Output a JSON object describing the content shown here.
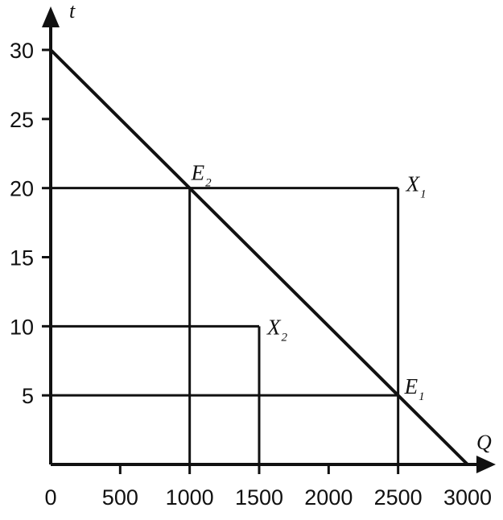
{
  "chart_data": {
    "type": "line",
    "xlabel": "Q",
    "ylabel": "t",
    "xlim": [
      0,
      3000
    ],
    "ylim": [
      0,
      30
    ],
    "x_ticks": [
      "0",
      "500",
      "1000",
      "1500",
      "2000",
      "2500",
      "3000"
    ],
    "y_ticks": [
      "5",
      "10",
      "15",
      "20",
      "25",
      "30"
    ],
    "series": [
      {
        "values": [
          {
            "x": 0,
            "y": 30
          },
          {
            "x": 3000,
            "y": 0
          }
        ]
      }
    ],
    "points": [
      {
        "main": "E",
        "sub": "2",
        "x": 1000,
        "y": 20
      },
      {
        "main": "E",
        "sub": "1",
        "x": 2500,
        "y": 5
      },
      {
        "main": "X",
        "sub": "1",
        "x": 2500,
        "y": 20
      },
      {
        "main": "X",
        "sub": "2",
        "x": 1500,
        "y": 10
      }
    ],
    "guide_lines": [
      {
        "from": [
          0,
          20
        ],
        "to": [
          2500,
          20
        ]
      },
      {
        "from": [
          2500,
          20
        ],
        "to": [
          2500,
          0
        ]
      },
      {
        "from": [
          1000,
          20
        ],
        "to": [
          1000,
          0
        ]
      },
      {
        "from": [
          0,
          10
        ],
        "to": [
          1500,
          10
        ]
      },
      {
        "from": [
          1500,
          10
        ],
        "to": [
          1500,
          0
        ]
      },
      {
        "from": [
          0,
          5
        ],
        "to": [
          2500,
          5
        ]
      }
    ],
    "grid": false,
    "line_color": "#111111"
  }
}
